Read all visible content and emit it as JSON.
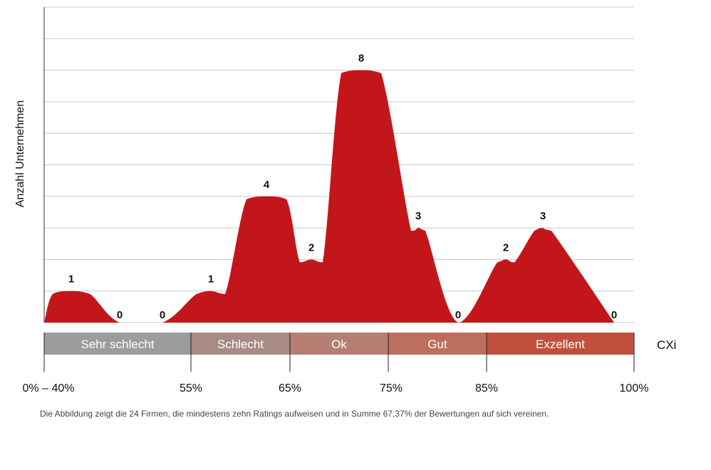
{
  "chart_data": {
    "type": "area",
    "ylabel": "Anzahl Unternehmen",
    "ylim": [
      0,
      10
    ],
    "grid": true,
    "fill_color": "#c3161b",
    "points": [
      {
        "label": "1",
        "value": 1
      },
      {
        "label": "0",
        "value": 0
      },
      {
        "label": "0",
        "value": 0
      },
      {
        "label": "1",
        "value": 1
      },
      {
        "label": "4",
        "value": 4
      },
      {
        "label": "2",
        "value": 2
      },
      {
        "label": "8",
        "value": 8
      },
      {
        "label": "3",
        "value": 3
      },
      {
        "label": "0",
        "value": 0
      },
      {
        "label": "2",
        "value": 2
      },
      {
        "label": "3",
        "value": 3
      },
      {
        "label": "0",
        "value": 0
      }
    ],
    "bands": [
      {
        "label": "Sehr schlecht",
        "color": "#9b9c9e"
      },
      {
        "label": "Schlecht",
        "color": "#a88b85"
      },
      {
        "label": "Ok",
        "color": "#b47f72"
      },
      {
        "label": "Gut",
        "color": "#bd6f5e"
      },
      {
        "label": "Exzellent",
        "color": "#c0503d"
      }
    ],
    "band_axis_label": "CXi",
    "x_ticks": [
      "0% – 40%",
      "55%",
      "65%",
      "75%",
      "85%",
      "100%"
    ]
  },
  "caption": "Die Abbildung zeigt die 24 Firmen, die mindestens zehn Ratings aufweisen und in Summe 67,37% der Bewertungen auf sich vereinen."
}
